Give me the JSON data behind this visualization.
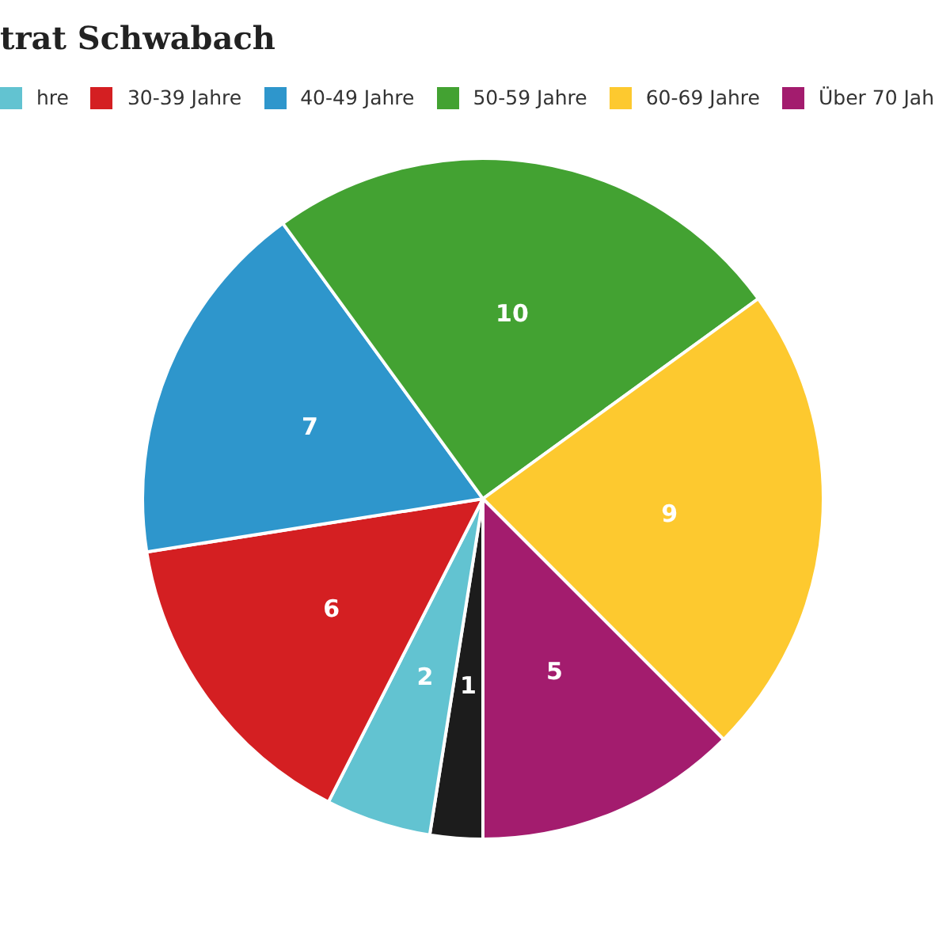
{
  "chart_data": {
    "type": "pie",
    "title": "trat Schwabach",
    "categories": [
      null,
      "hre",
      "30-39 Jahre",
      "40-49 Jahre",
      "50-59 Jahre",
      "60-69 Jahre",
      "Über 70 Jah"
    ],
    "values": [
      1,
      2,
      6,
      7,
      10,
      9,
      5
    ],
    "colors": [
      "#1c1c1c",
      "#62c3d1",
      "#d41f22",
      "#2e96cc",
      "#43a232",
      "#fdc92f",
      "#a31c6e"
    ],
    "data_labels": true,
    "legend": "top"
  }
}
